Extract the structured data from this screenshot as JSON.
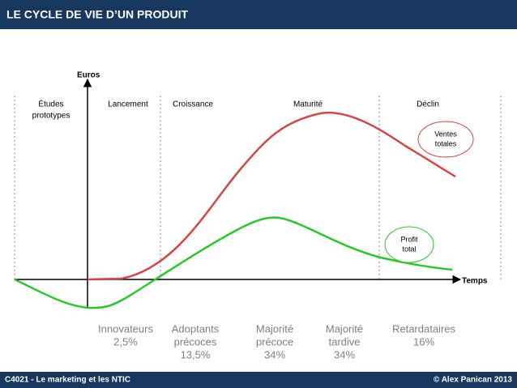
{
  "header": {
    "title": "LE CYCLE DE VIE D’UN PRODUIT"
  },
  "axes": {
    "y": "Euros",
    "x": "Temps"
  },
  "phases": [
    {
      "lines": [
        "Études",
        "prototypes"
      ]
    },
    {
      "lines": [
        "Lancement"
      ]
    },
    {
      "lines": [
        "Croissance"
      ]
    },
    {
      "lines": [
        "Maturité"
      ]
    },
    {
      "lines": [
        "Déclin"
      ]
    }
  ],
  "callouts": [
    {
      "lines": [
        "Ventes",
        "totales"
      ]
    },
    {
      "lines": [
        "Profit",
        "total"
      ]
    }
  ],
  "adopters": [
    {
      "lines": [
        "Innovateurs",
        "2,5%"
      ]
    },
    {
      "lines": [
        "Adoptants",
        "précoces",
        "13,5%"
      ]
    },
    {
      "lines": [
        "Majorité",
        "précoce",
        "34%"
      ]
    },
    {
      "lines": [
        "Majorité",
        "tardive",
        "34%"
      ]
    },
    {
      "lines": [
        "Retardataires",
        "16%"
      ]
    }
  ],
  "footer": {
    "left": "C4021 - Le marketing et les NTIC",
    "right": "© Alex Panican 2013"
  }
}
